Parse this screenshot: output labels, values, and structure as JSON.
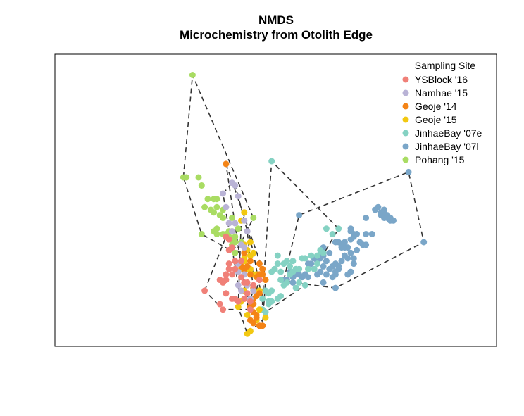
{
  "title": "NMDS",
  "subtitle": "Microchemistry from Otolith Edge",
  "chart_data": {
    "type": "scatter",
    "title": "NMDS",
    "subtitle": "Microchemistry from Otolith Edge",
    "xlabel": "",
    "ylabel": "",
    "xlim": [
      0,
      100
    ],
    "ylim": [
      0,
      100
    ],
    "axes_shown": false,
    "grid": false,
    "legend_title": "Sampling Site",
    "legend_position": "top-right",
    "hulls": "dashed convex hull around each group's points",
    "series": [
      {
        "name": "YSBlock '16",
        "color": "#f08078",
        "points": [
          [
            27,
            17
          ],
          [
            33,
            10
          ],
          [
            32,
            12
          ],
          [
            37,
            14
          ],
          [
            36,
            14
          ],
          [
            38,
            13
          ],
          [
            32,
            21
          ],
          [
            34,
            23
          ],
          [
            34,
            21
          ],
          [
            35,
            25
          ],
          [
            37,
            25
          ],
          [
            39,
            22
          ],
          [
            40,
            20
          ],
          [
            41,
            20
          ],
          [
            35,
            32
          ],
          [
            36,
            33
          ],
          [
            34,
            37
          ],
          [
            35,
            36
          ],
          [
            35,
            27
          ],
          [
            37,
            28
          ],
          [
            39,
            28
          ],
          [
            36,
            23
          ],
          [
            41,
            16
          ],
          [
            40,
            14
          ],
          [
            42,
            13
          ],
          [
            42,
            10
          ],
          [
            33,
            20
          ],
          [
            34,
            16
          ],
          [
            43,
            19
          ],
          [
            45,
            21
          ]
        ]
      },
      {
        "name": "Namhae '15",
        "color": "#b9b3d6",
        "points": [
          [
            36,
            57
          ],
          [
            37,
            56
          ],
          [
            34,
            48
          ],
          [
            33,
            53
          ],
          [
            38,
            52
          ],
          [
            40,
            43
          ],
          [
            35,
            42
          ],
          [
            37,
            42
          ],
          [
            39,
            34
          ],
          [
            40,
            33
          ],
          [
            41,
            39
          ],
          [
            36,
            39
          ],
          [
            38,
            27
          ],
          [
            38,
            24
          ],
          [
            40,
            23
          ],
          [
            41,
            19
          ],
          [
            38,
            19
          ],
          [
            39,
            17
          ],
          [
            42,
            14
          ],
          [
            43,
            17
          ]
        ]
      },
      {
        "name": "Geoje '14",
        "color": "#f48416",
        "points": [
          [
            34,
            64
          ],
          [
            43,
            14
          ],
          [
            43,
            12
          ],
          [
            43,
            9
          ],
          [
            44,
            8
          ],
          [
            44,
            7
          ],
          [
            42,
            6
          ],
          [
            43,
            5
          ],
          [
            45,
            4
          ],
          [
            46,
            4
          ],
          [
            42,
            11
          ],
          [
            44,
            15
          ],
          [
            45,
            16
          ],
          [
            43,
            18
          ],
          [
            45,
            23
          ],
          [
            45,
            27
          ],
          [
            41,
            26
          ],
          [
            40,
            25
          ],
          [
            39,
            26
          ],
          [
            42,
            28
          ],
          [
            46,
            23
          ],
          [
            40,
            31
          ],
          [
            47,
            21
          ],
          [
            46,
            25
          ],
          [
            44,
            22
          ],
          [
            42,
            23
          ]
        ]
      },
      {
        "name": "Geoje '15",
        "color": "#f2c811",
        "points": [
          [
            40,
            46
          ],
          [
            39,
            43
          ],
          [
            40,
            34
          ],
          [
            41,
            32
          ],
          [
            42,
            30
          ],
          [
            43,
            31
          ],
          [
            40,
            29
          ],
          [
            39,
            28
          ],
          [
            39,
            25
          ],
          [
            41,
            25
          ],
          [
            42,
            25
          ],
          [
            43,
            23
          ],
          [
            44,
            23
          ],
          [
            45,
            17
          ],
          [
            43,
            17
          ],
          [
            40,
            14
          ],
          [
            39,
            13
          ],
          [
            38,
            11
          ],
          [
            41,
            8
          ],
          [
            44,
            6
          ],
          [
            47,
            7
          ],
          [
            42,
            2
          ],
          [
            41,
            1
          ],
          [
            40,
            28
          ],
          [
            42,
            35
          ],
          [
            39,
            26
          ],
          [
            45,
            10
          ],
          [
            40,
            17
          ]
        ]
      },
      {
        "name": "JinhaeBay '07e",
        "color": "#85d2c3",
        "points": [
          [
            49,
            65
          ],
          [
            71,
            40
          ],
          [
            67,
            40
          ],
          [
            69,
            38
          ],
          [
            57,
            25
          ],
          [
            55,
            26
          ],
          [
            52,
            24
          ],
          [
            50,
            25
          ],
          [
            49,
            24
          ],
          [
            51,
            27
          ],
          [
            53,
            27
          ],
          [
            55,
            23
          ],
          [
            58,
            25
          ],
          [
            52,
            21
          ],
          [
            53,
            19
          ],
          [
            54,
            20
          ],
          [
            58,
            20
          ],
          [
            60,
            19
          ],
          [
            54,
            28
          ],
          [
            56,
            28
          ],
          [
            59,
            29
          ],
          [
            60,
            29
          ],
          [
            62,
            30
          ],
          [
            64,
            30
          ],
          [
            65,
            32
          ],
          [
            66,
            31
          ],
          [
            47,
            17
          ],
          [
            48,
            16
          ],
          [
            49,
            13
          ],
          [
            51,
            14
          ],
          [
            46,
            14
          ],
          [
            46,
            10
          ],
          [
            47,
            9
          ],
          [
            48,
            12
          ],
          [
            52,
            15
          ],
          [
            48,
            13
          ],
          [
            57,
            18
          ],
          [
            56,
            24
          ],
          [
            51,
            30
          ],
          [
            49,
            17
          ],
          [
            64,
            27
          ],
          [
            63,
            25
          ],
          [
            61,
            25
          ]
        ]
      },
      {
        "name": "JinhaeBay '07l",
        "color": "#7aa6c8",
        "points": [
          [
            70,
            35
          ],
          [
            66,
            33
          ],
          [
            63,
            29
          ],
          [
            64,
            28
          ],
          [
            62,
            27
          ],
          [
            61,
            27
          ],
          [
            59,
            22
          ],
          [
            61,
            22
          ],
          [
            60,
            23
          ],
          [
            58,
            23
          ],
          [
            57,
            23
          ],
          [
            56,
            22
          ],
          [
            55,
            24
          ],
          [
            54,
            21
          ],
          [
            53,
            21
          ],
          [
            56,
            20
          ],
          [
            65,
            29
          ],
          [
            66,
            30
          ],
          [
            67,
            28
          ],
          [
            68,
            31
          ],
          [
            71,
            35
          ],
          [
            72,
            34
          ],
          [
            73,
            33
          ],
          [
            74,
            33
          ],
          [
            75,
            36
          ],
          [
            76,
            37
          ],
          [
            75,
            39
          ],
          [
            75,
            40
          ],
          [
            76,
            38
          ],
          [
            77,
            38
          ],
          [
            80,
            38
          ],
          [
            78,
            35
          ],
          [
            79,
            34
          ],
          [
            77,
            32
          ],
          [
            76,
            29
          ],
          [
            74,
            29
          ],
          [
            73,
            30
          ],
          [
            72,
            28
          ],
          [
            70,
            27
          ],
          [
            71,
            26
          ],
          [
            70,
            23
          ],
          [
            74,
            23
          ],
          [
            75,
            24
          ],
          [
            72,
            33
          ],
          [
            73,
            35
          ],
          [
            80,
            44
          ],
          [
            71,
            25
          ],
          [
            76,
            27
          ],
          [
            68,
            25
          ],
          [
            69,
            26
          ],
          [
            69,
            22
          ],
          [
            67,
            23
          ],
          [
            66,
            26
          ],
          [
            70,
            24
          ],
          [
            65,
            24
          ],
          [
            64,
            23
          ],
          [
            66,
            20
          ],
          [
            58,
            45
          ],
          [
            70,
            18
          ],
          [
            85,
            45
          ],
          [
            86,
            44
          ],
          [
            86,
            45
          ],
          [
            87,
            44
          ],
          [
            88,
            43
          ],
          [
            89,
            43
          ],
          [
            88,
            44
          ],
          [
            87,
            45
          ],
          [
            86,
            46
          ],
          [
            84,
            48
          ],
          [
            94,
            61
          ],
          [
            99,
            35
          ],
          [
            86,
            47
          ],
          [
            85,
            46
          ],
          [
            83,
            47
          ],
          [
            82,
            38
          ],
          [
            80,
            34
          ],
          [
            75,
            31
          ]
        ]
      },
      {
        "name": "Pohang '15",
        "color": "#a9dc63",
        "points": [
          [
            23,
            97
          ],
          [
            20,
            59
          ],
          [
            21,
            59
          ],
          [
            25,
            59
          ],
          [
            26,
            56
          ],
          [
            28,
            51
          ],
          [
            27,
            48
          ],
          [
            30,
            51
          ],
          [
            31,
            51
          ],
          [
            29,
            47
          ],
          [
            31,
            48
          ],
          [
            33,
            47
          ],
          [
            30,
            46
          ],
          [
            32,
            45
          ],
          [
            33,
            44
          ],
          [
            31,
            40
          ],
          [
            30,
            39
          ],
          [
            31,
            38
          ],
          [
            33,
            38
          ],
          [
            35,
            39
          ],
          [
            35,
            37
          ],
          [
            36,
            36
          ],
          [
            36,
            39
          ],
          [
            34,
            38
          ],
          [
            36,
            44
          ],
          [
            38,
            40
          ],
          [
            37,
            37
          ],
          [
            36,
            34
          ],
          [
            37,
            31
          ],
          [
            37,
            35
          ],
          [
            26,
            38
          ],
          [
            43,
            44
          ],
          [
            39,
            35
          ]
        ]
      }
    ]
  }
}
